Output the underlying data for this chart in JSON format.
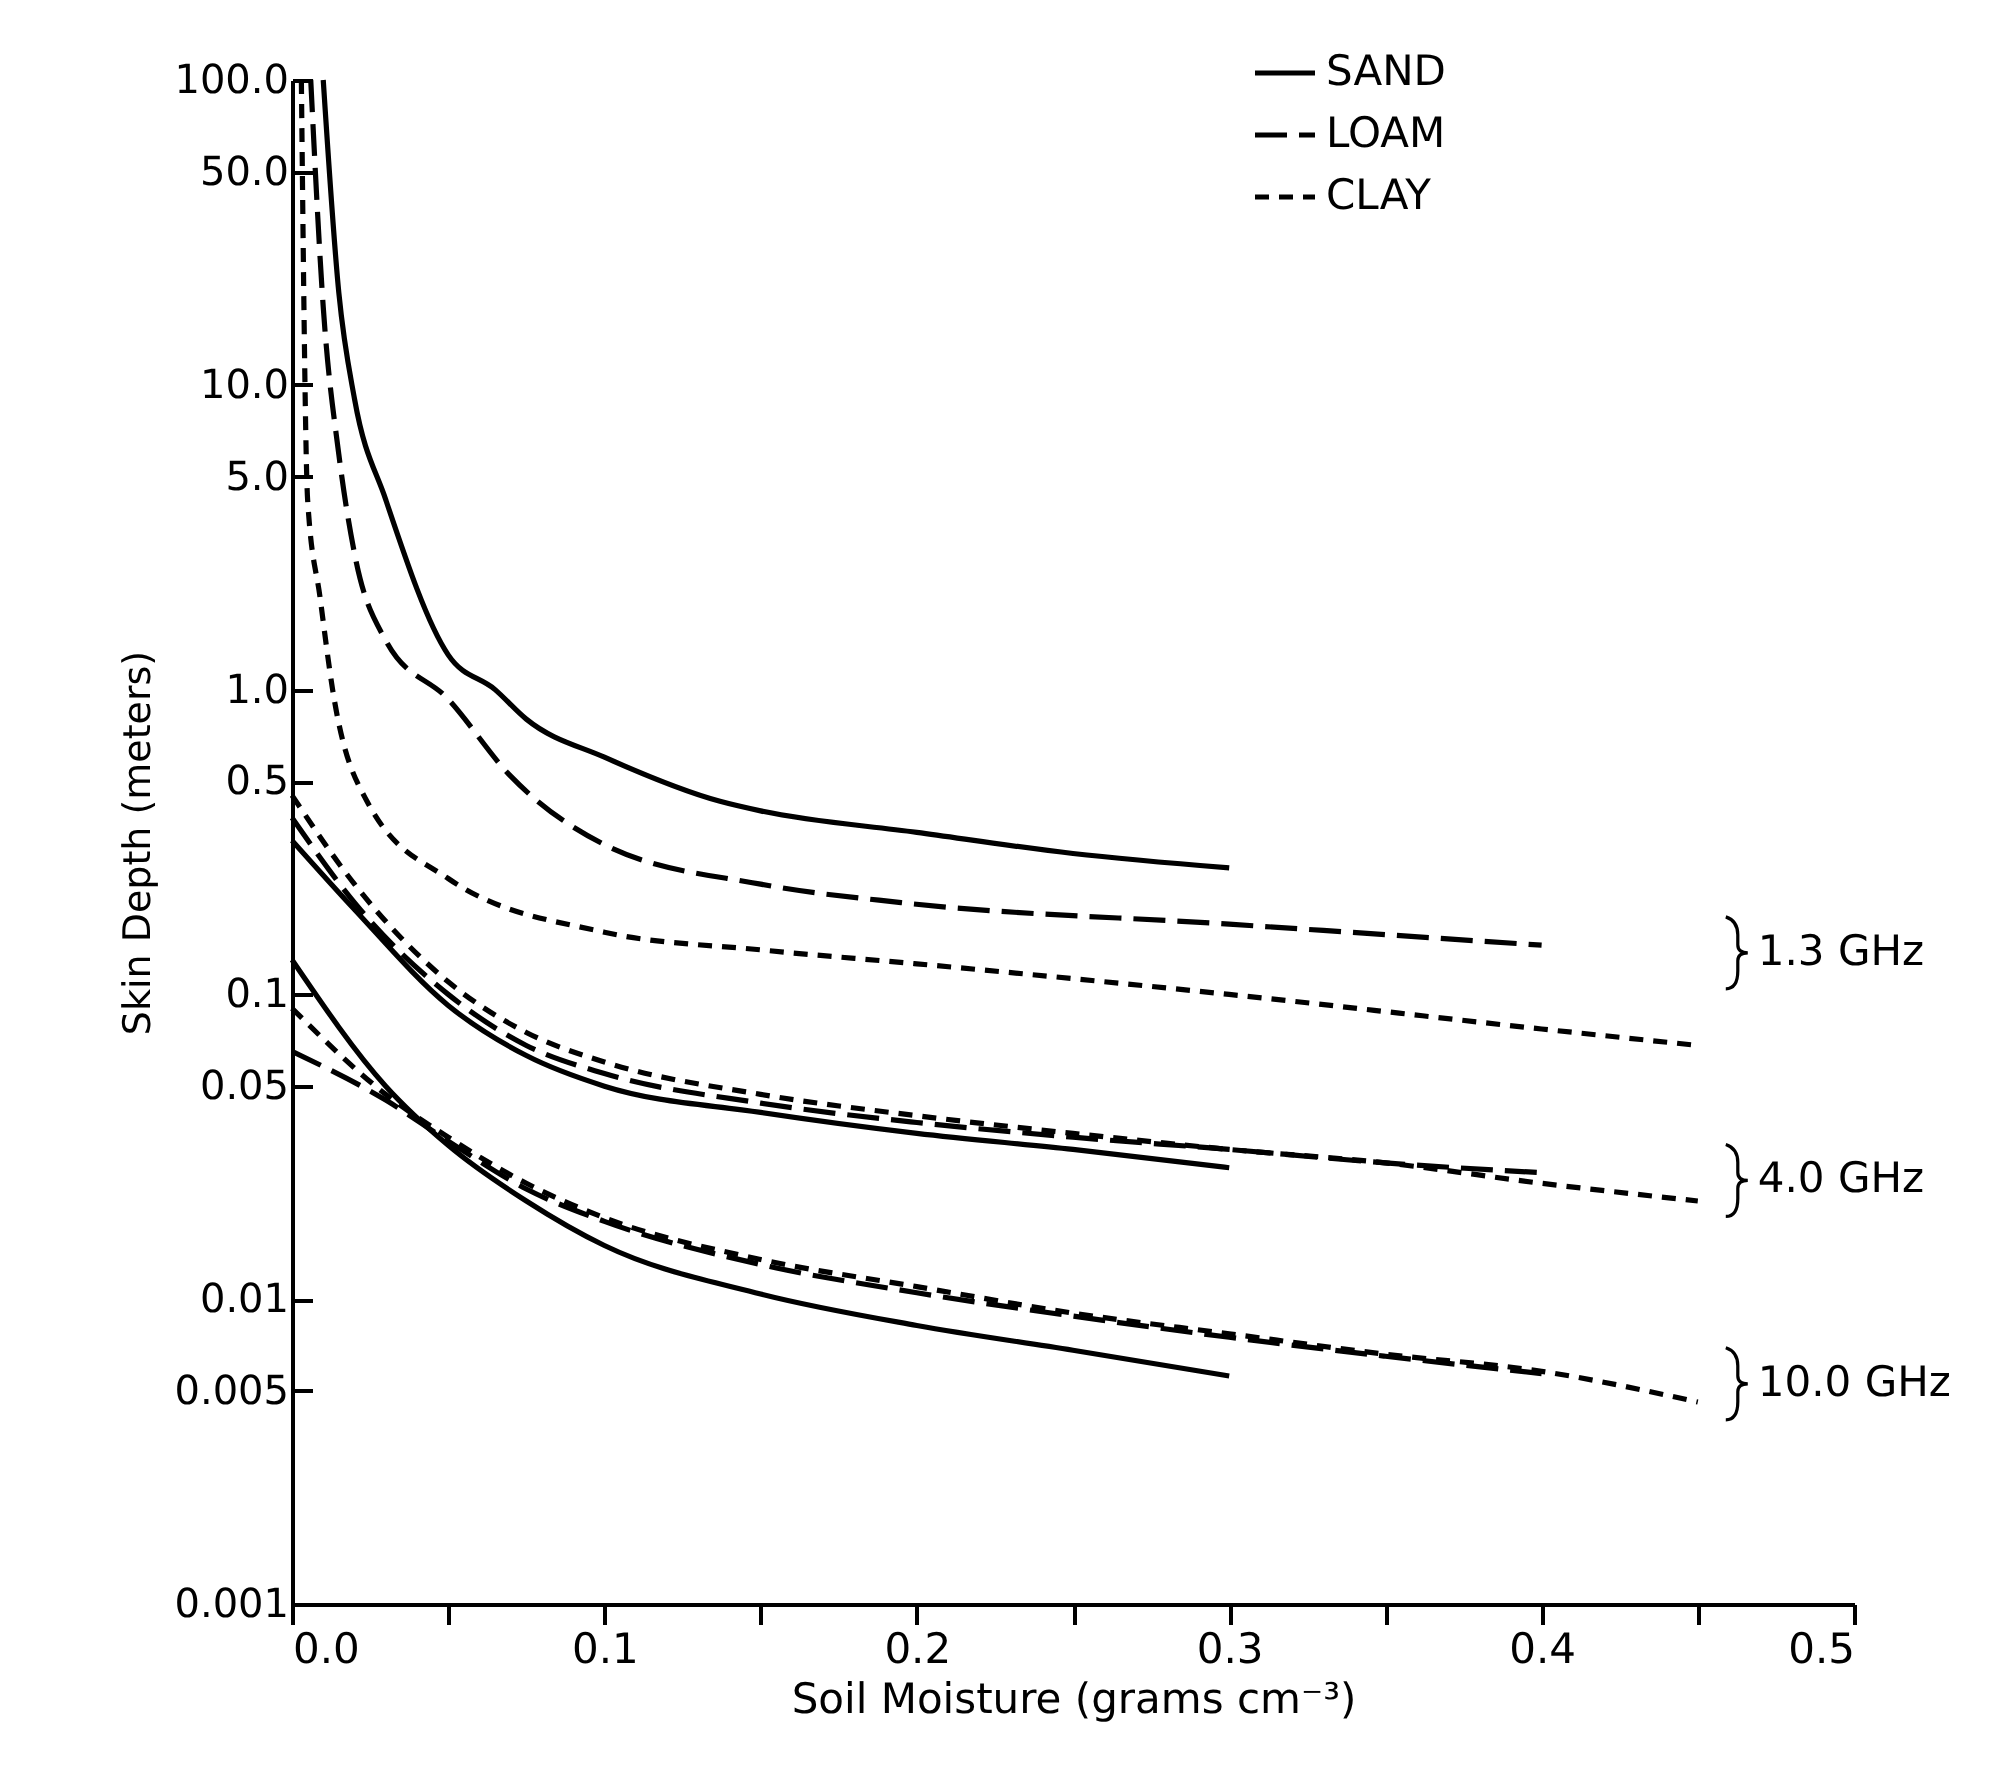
{
  "chart_data": {
    "type": "line",
    "xlabel": "Soil Moisture (grams cm⁻³)",
    "ylabel": "Skin Depth (meters)",
    "xlim": [
      0,
      0.5
    ],
    "xticks": [
      {
        "value": 0,
        "label": "0.0"
      },
      {
        "value": 0.05,
        "label": null
      },
      {
        "value": 0.1,
        "label": "0.1"
      },
      {
        "value": 0.15,
        "label": null
      },
      {
        "value": 0.2,
        "label": "0.2"
      },
      {
        "value": 0.25,
        "label": null
      },
      {
        "value": 0.3,
        "label": "0.3"
      },
      {
        "value": 0.35,
        "label": null
      },
      {
        "value": 0.4,
        "label": "0.4"
      },
      {
        "value": 0.45,
        "label": null
      },
      {
        "value": 0.5,
        "label": "0.5"
      }
    ],
    "ylim": [
      0.001,
      100
    ],
    "yticks": [
      {
        "value": 0.001,
        "label": "0.001"
      },
      0.005,
      0.01,
      0.05,
      0.1,
      0.5,
      {
        "value": 1,
        "label": "1.0"
      },
      {
        "value": 5,
        "label": "5.0"
      },
      {
        "value": 10,
        "label": "10.0"
      },
      {
        "value": 50,
        "label": "50.0"
      },
      {
        "value": 100,
        "label": "100.0"
      }
    ],
    "log": "y",
    "grid": false,
    "legend": "top right",
    "marker": "none",
    "series": [
      {
        "name": "SAND",
        "color": "#000000",
        "line_style": "solid",
        "x": [
          0.01,
          0.015,
          0.02,
          0.03,
          0.05,
          0.065,
          0.075,
          0.1,
          0.137,
          0.15,
          0.2,
          0.25,
          0.3
        ],
        "values": [
          100,
          20,
          9,
          4.2,
          1.3,
          1,
          0.8,
          0.6,
          0.43,
          0.4,
          0.34,
          0.29,
          0.26
        ]
      },
      {
        "name": "LOAM",
        "color": "#000000",
        "line_style": "dashed",
        "x": [
          0.006,
          0.01,
          0.015,
          0.02,
          0.03,
          0.05,
          0.07,
          0.1,
          0.15,
          0.195,
          0.3,
          0.4
        ],
        "values": [
          100,
          18,
          5.9,
          2.8,
          1.45,
          0.93,
          0.52,
          0.31,
          0.23,
          0.2,
          0.17,
          0.145
        ]
      },
      {
        "name": "CLAY",
        "color": "#000000",
        "line_style": "dotted",
        "x": [
          0.003,
          0.005,
          0.009,
          0.013,
          0.024,
          0.05,
          0.1,
          0.15,
          0.2,
          0.3,
          0.4,
          0.45
        ],
        "values": [
          100,
          4.2,
          2,
          1,
          0.43,
          0.24,
          0.16,
          0.14,
          0.126,
          0.1,
          0.077,
          0.068
        ]
      },
      {
        "color": "#000000",
        "line_style": "solid",
        "x": [
          0,
          0.02,
          0.05,
          0.075,
          0.1,
          0.15,
          0.2,
          0.25,
          0.3
        ],
        "values": [
          0.32,
          0.19,
          0.092,
          0.063,
          0.05,
          0.041,
          0.035,
          0.031,
          0.027
        ]
      },
      {
        "color": "#000000",
        "line_style": "dashed",
        "x": [
          0,
          0.02,
          0.05,
          0.075,
          0.1,
          0.15,
          0.2,
          0.25,
          0.3,
          0.35,
          0.4
        ],
        "values": [
          0.38,
          0.2,
          0.1,
          0.068,
          0.055,
          0.044,
          0.038,
          0.034,
          0.031,
          0.028,
          0.026
        ]
      },
      {
        "color": "#000000",
        "line_style": "dotted",
        "x": [
          0,
          0.02,
          0.05,
          0.075,
          0.1,
          0.15,
          0.2,
          0.25,
          0.3,
          0.35,
          0.4,
          0.45
        ],
        "values": [
          0.45,
          0.23,
          0.11,
          0.075,
          0.06,
          0.047,
          0.04,
          0.035,
          0.031,
          0.028,
          0.024,
          0.021
        ]
      },
      {
        "color": "#000000",
        "line_style": "solid",
        "x": [
          0,
          0.03,
          0.05,
          0.075,
          0.1,
          0.15,
          0.2,
          0.25,
          0.3
        ],
        "values": [
          0.13,
          0.05,
          0.032,
          0.021,
          0.015,
          0.0104,
          0.0082,
          0.0068,
          0.0056
        ]
      },
      {
        "color": "#000000",
        "line_style": "dashed",
        "x": [
          0,
          0.03,
          0.05,
          0.075,
          0.1,
          0.15,
          0.2,
          0.25,
          0.3,
          0.35,
          0.4
        ],
        "values": [
          0.065,
          0.045,
          0.033,
          0.023,
          0.018,
          0.013,
          0.0105,
          0.0088,
          0.0075,
          0.0065,
          0.0057
        ]
      },
      {
        "color": "#000000",
        "line_style": "dotted",
        "x": [
          0,
          0.03,
          0.05,
          0.075,
          0.1,
          0.15,
          0.2,
          0.25,
          0.3,
          0.35,
          0.4,
          0.45
        ],
        "values": [
          0.09,
          0.047,
          0.034,
          0.024,
          0.0185,
          0.0135,
          0.011,
          0.009,
          0.0077,
          0.0066,
          0.0058,
          0.0046
        ]
      }
    ],
    "annotations": [
      "1.3 GHz",
      "4.0 GHz",
      "10.0 GHz"
    ]
  }
}
